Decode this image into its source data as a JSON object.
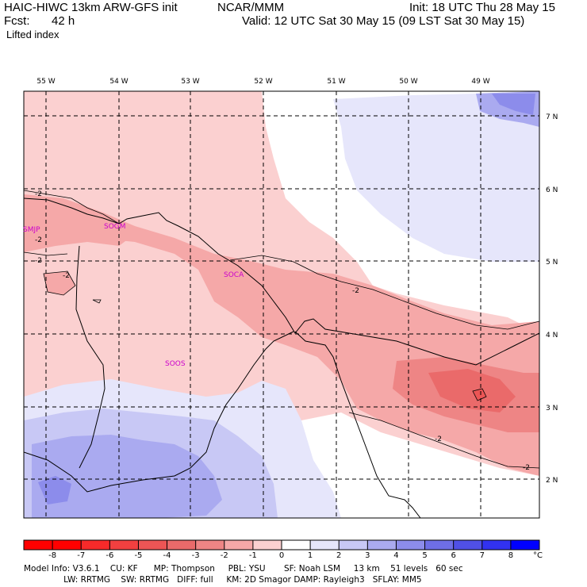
{
  "header": {
    "model": "HAIC-HIWC 13km ARW-GFS init",
    "center": "NCAR/MMM",
    "init": "Init: 18 UTC Thu 28 May 15",
    "fcst_label": "Fcst:",
    "fcst_value": "42 h",
    "valid": "Valid: 12 UTC Sat 30 May 15 (09 LST Sat 30 May 15)",
    "field": "Lifted index"
  },
  "map": {
    "lon_labels": [
      "55 W",
      "54 W",
      "53 W",
      "52 W",
      "51 W",
      "50 W",
      "49 W"
    ],
    "lat_labels": [
      "7 N",
      "6 N",
      "5 N",
      "4 N",
      "3 N",
      "2 N"
    ],
    "stations": [
      "SMJP",
      "SOGM",
      "SOCA",
      "SOOS"
    ],
    "contour_label": "-2"
  },
  "colorbar": {
    "ticks": [
      "-8",
      "-7",
      "-6",
      "-5",
      "-4",
      "-3",
      "-2",
      "-1",
      "0",
      "1",
      "2",
      "3",
      "4",
      "5",
      "6",
      "7",
      "8"
    ],
    "unit": "°C",
    "colors": [
      "#ff0000",
      "#f72a2a",
      "#f24040",
      "#ec5555",
      "#ea6a6a",
      "#ee8585",
      "#f5a8a8",
      "#fbd0d0",
      "#ffffff",
      "#e6e6fb",
      "#c8c8f5",
      "#aaaaf0",
      "#8c8ceb",
      "#6e6ee6",
      "#5050e6",
      "#3232f0",
      "#0000ff"
    ]
  },
  "footer": {
    "line1": "Model Info: V3.6.1    CU: KF      MP: Thompson     PBL: YSU       SF: Noah LSM     13 km    51 levels   60 sec",
    "line2": "               LW: RRTMG    SW: RRTMG   DIFF: full     KM: 2D Smagor DAMP: Rayleigh3   SFLAY: MM5"
  }
}
